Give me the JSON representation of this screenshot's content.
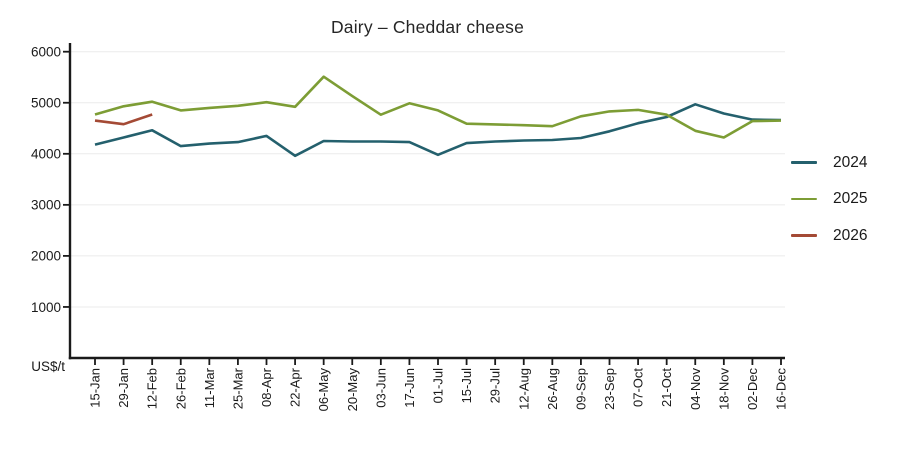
{
  "chart_data": {
    "type": "line",
    "title": "Dairy – Cheddar cheese",
    "ylabel": "US$/t",
    "categories": [
      "15-Jan",
      "29-Jan",
      "12-Feb",
      "26-Feb",
      "11-Mar",
      "25-Mar",
      "08-Apr",
      "22-Apr",
      "06-May",
      "20-May",
      "03-Jun",
      "17-Jun",
      "01-Jul",
      "15-Jul",
      "29-Jul",
      "12-Aug",
      "26-Aug",
      "09-Sep",
      "23-Sep",
      "07-Oct",
      "21-Oct",
      "04-Nov",
      "18-Nov",
      "02-Dec",
      "16-Dec"
    ],
    "series": [
      {
        "name": "2024",
        "color": "#24606d",
        "values": [
          4180,
          4320,
          4460,
          4150,
          4200,
          4230,
          4350,
          3960,
          4250,
          4240,
          4240,
          4230,
          3980,
          4210,
          4240,
          4260,
          4270,
          4310,
          4440,
          4600,
          4720,
          4970,
          4790,
          4670,
          4660
        ]
      },
      {
        "name": "2025",
        "color": "#7d9d35",
        "values": [
          4770,
          4930,
          5020,
          4850,
          4900,
          4940,
          5010,
          4920,
          5510,
          5130,
          4765,
          4990,
          4850,
          4590,
          4575,
          4560,
          4540,
          4735,
          4830,
          4860,
          4765,
          4450,
          4320,
          4640,
          4650
        ]
      },
      {
        "name": "2026",
        "color": "#a44a35",
        "values": [
          4650,
          4580,
          4770
        ]
      }
    ],
    "yticks": [
      1000,
      2000,
      3000,
      4000,
      5000,
      6000
    ],
    "ylim": [
      0,
      6200
    ],
    "grid": "horizontal",
    "legend_position": "right"
  },
  "style": {
    "axis_color": "#1a1a1a",
    "grid_color": "#ebebeb",
    "text_color": "#1a1a1a",
    "background": "#ffffff"
  }
}
